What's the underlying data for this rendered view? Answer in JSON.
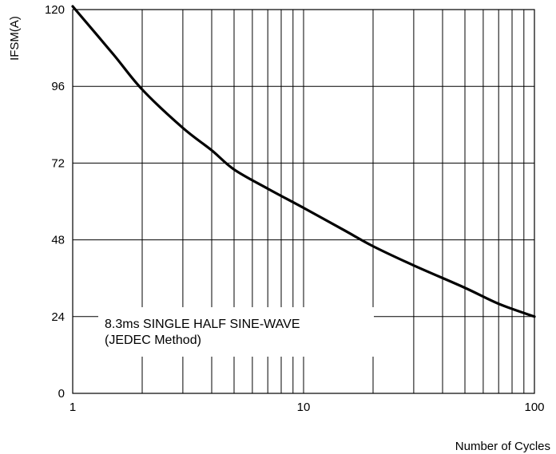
{
  "chart_data": {
    "type": "line",
    "xlabel": "Number of Cycles",
    "ylabel": "IFSM(A)",
    "x_scale": "log",
    "xlim": [
      1,
      100
    ],
    "ylim": [
      0,
      120
    ],
    "x_ticks": [
      "1",
      "10",
      "100"
    ],
    "y_ticks": [
      "0",
      "24",
      "48",
      "72",
      "96",
      "120"
    ],
    "grid": true,
    "annotation": [
      "8.3ms SINGLE HALF SINE-WAVE",
      "(JEDEC Method)"
    ],
    "series": [
      {
        "x": [
          1,
          1.5,
          2,
          3,
          4,
          5,
          7,
          10,
          15,
          20,
          30,
          50,
          70,
          100
        ],
        "y": [
          121,
          106,
          95,
          83,
          76,
          70,
          64,
          58,
          51,
          46,
          40,
          33,
          28,
          24
        ]
      }
    ]
  }
}
